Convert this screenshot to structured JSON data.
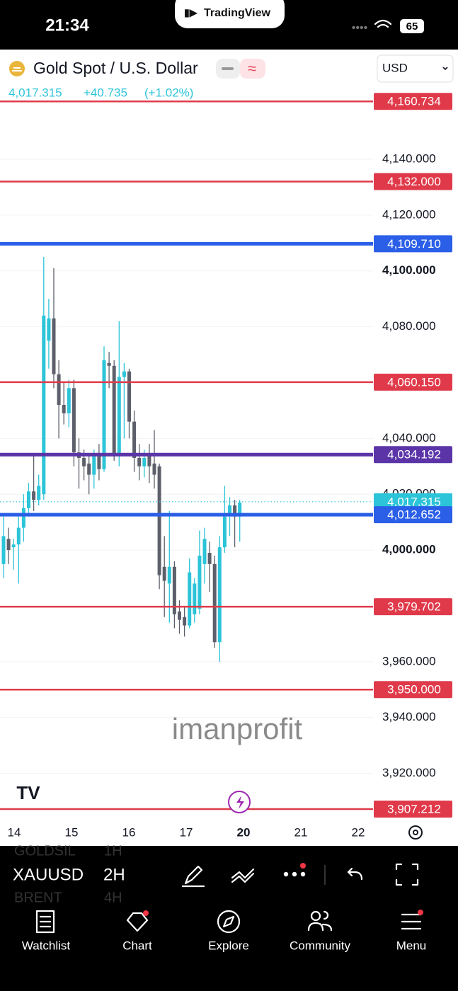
{
  "status_bar": {
    "time": "21:34",
    "app": "TradingView",
    "battery": "65"
  },
  "header": {
    "symbol_name": "Gold Spot / U.S. Dollar",
    "price": "4,017.315",
    "change": "+40.735",
    "change_pct": "(+1.02%)",
    "currency": "USD"
  },
  "chart_data": {
    "type": "candlestick",
    "categories": [
      "14",
      "15",
      "16",
      "17",
      "20",
      "21",
      "22"
    ],
    "open": [
      3995,
      4004,
      4001,
      4002,
      4008,
      4015,
      4021,
      4018,
      4020,
      4075,
      4083,
      4063,
      4052,
      4049,
      4058,
      4035,
      4033,
      4031,
      4027,
      4034,
      4029,
      4067,
      4066,
      4034,
      4062,
      4064,
      4046,
      4033,
      4030,
      4034,
      4031,
      4030,
      3994,
      3988,
      3994,
      3978,
      3976,
      3973,
      3977,
      3979,
      3995,
      3999,
      3995,
      3967,
      4001,
      4013,
      4016,
      4012
    ],
    "high": [
      4012,
      4008,
      4004,
      4012,
      4020,
      4024,
      4034,
      4027,
      4105,
      4090,
      4101,
      4068,
      4060,
      4061,
      4061,
      4040,
      4036,
      4034,
      4036,
      4038,
      4073,
      4071,
      4068,
      4082,
      4067,
      4065,
      4050,
      4038,
      4036,
      4038,
      4043,
      4031,
      4005,
      4014,
      3996,
      3982,
      3980,
      3997,
      3990,
      4007,
      4008,
      4003,
      3998,
      4005,
      4023,
      4019,
      4018,
      4018
    ],
    "low": [
      3990,
      3995,
      3993,
      3988,
      4003,
      4012,
      4014,
      4016,
      4018,
      4065,
      4058,
      4040,
      4045,
      4044,
      4030,
      4022,
      4025,
      4020,
      4022,
      4025,
      4028,
      4058,
      4032,
      4030,
      4040,
      4040,
      4028,
      4025,
      4026,
      4024,
      4022,
      3986,
      3976,
      3974,
      3972,
      3970,
      3969,
      3972,
      3974,
      3977,
      3988,
      3985,
      3965,
      3960,
      3999,
      4005,
      4001,
      4003
    ],
    "close": [
      4005,
      4000,
      4002,
      4008,
      4015,
      4021,
      4018,
      4023,
      4084,
      4083,
      4063,
      4052,
      4049,
      4058,
      4035,
      4033,
      4030,
      4027,
      4034,
      4029,
      4068,
      4066,
      4034,
      4062,
      4064,
      4046,
      4033,
      4030,
      4033,
      4030,
      4027,
      3991,
      3989,
      3994,
      3977,
      3975,
      3973,
      3992,
      3988,
      3998,
      4004,
      3995,
      3967,
      4001,
      4012,
      4016,
      4012,
      4017
    ],
    "up_color": "#2cc4d8",
    "down_color": "#5d606b",
    "ylim": [
      3902.9,
      4179.3
    ],
    "yticks": [
      {
        "value": 4140,
        "label": "4,140.000"
      },
      {
        "value": 4120,
        "label": "4,120.000"
      },
      {
        "value": 4100,
        "label": "4,100.000"
      },
      {
        "value": 4080,
        "label": "4,080.000"
      },
      {
        "value": 4040,
        "label": "4,040.000"
      },
      {
        "value": 4020,
        "label": "4,020.000"
      },
      {
        "value": 4000,
        "label": "4,000.000"
      },
      {
        "value": 3960,
        "label": "3,960.000"
      },
      {
        "value": 3940,
        "label": "3,940.000"
      },
      {
        "value": 3920,
        "label": "3,920.000"
      }
    ],
    "price_lines": [
      {
        "value": 4160.734,
        "label": "4,160.734",
        "color": "#e03a4a",
        "style": "solid"
      },
      {
        "value": 4132.0,
        "label": "4,132.000",
        "color": "#e03a4a",
        "style": "solid"
      },
      {
        "value": 4109.71,
        "label": "4,109.710",
        "color": "#2b5fe8",
        "style": "thick"
      },
      {
        "value": 4060.15,
        "label": "4,060.150",
        "color": "#e03a4a",
        "style": "solid"
      },
      {
        "value": 4034.192,
        "label": "4,034.192",
        "color": "#5b35a8",
        "style": "thick"
      },
      {
        "value": 4017.315,
        "label": "4,017.315",
        "color": "#2cc4d8",
        "style": "dotted"
      },
      {
        "value": 4012.652,
        "label": "4,012.652",
        "color": "#2b5fe8",
        "style": "thick"
      },
      {
        "value": 3979.702,
        "label": "3,979.702",
        "color": "#e03a4a",
        "style": "solid"
      },
      {
        "value": 3950.0,
        "label": "3,950.000",
        "color": "#e03a4a",
        "style": "solid"
      },
      {
        "value": 3907.212,
        "label": "3,907.212",
        "color": "#e03a4a",
        "style": "solid"
      }
    ],
    "watermark": "imanprofit"
  },
  "toolbar": {
    "symbol": "XAUUSD",
    "interval": "2H",
    "prev_symbol": "GOLDSIL",
    "prev_interval": "1H",
    "next_symbol": "BRENT",
    "next_interval": "4H"
  },
  "nav": [
    {
      "label": "Watchlist"
    },
    {
      "label": "Chart"
    },
    {
      "label": "Explore"
    },
    {
      "label": "Community"
    },
    {
      "label": "Menu"
    }
  ]
}
